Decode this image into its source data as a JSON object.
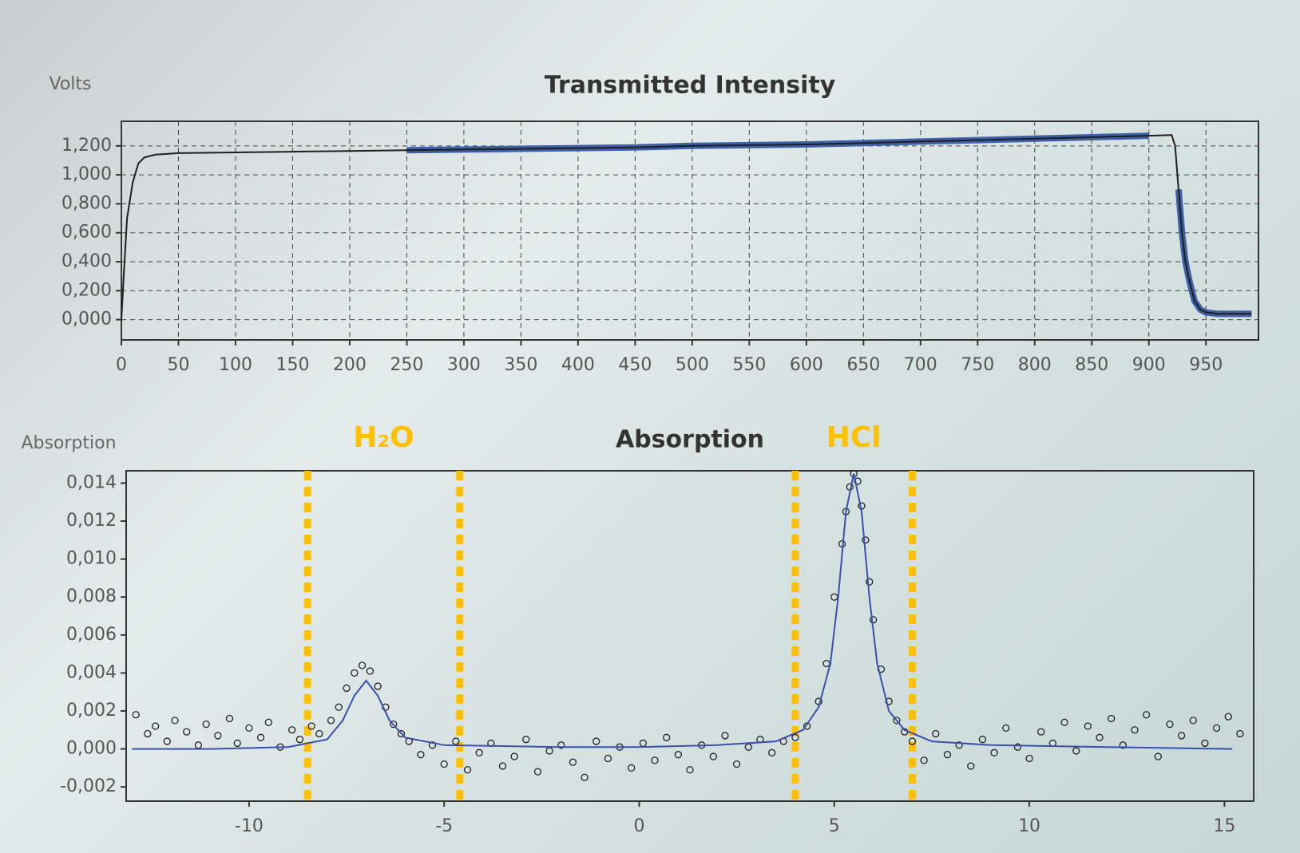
{
  "chart_data": [
    {
      "type": "line",
      "title": "Transmitted Intensity",
      "ylabel": "Volts",
      "grid": true,
      "xlim": [
        0,
        996
      ],
      "ylim": [
        -0.14,
        1.37
      ],
      "xticks": [
        0,
        50,
        100,
        150,
        200,
        250,
        300,
        350,
        400,
        450,
        500,
        550,
        600,
        650,
        700,
        750,
        800,
        850,
        900,
        950
      ],
      "yticks": [
        {
          "value": 0,
          "label": "0,000"
        },
        {
          "value": 0.2,
          "label": "0,200"
        },
        {
          "value": 0.4,
          "label": "0,400"
        },
        {
          "value": 0.6,
          "label": "0,600"
        },
        {
          "value": 0.8,
          "label": "0,800"
        },
        {
          "value": 1.0,
          "label": "1,000"
        },
        {
          "value": 1.2,
          "label": "1,200"
        }
      ],
      "x": [
        0,
        2,
        5,
        10,
        15,
        20,
        30,
        50,
        100,
        150,
        200,
        250,
        300,
        350,
        400,
        450,
        500,
        550,
        600,
        650,
        700,
        750,
        800,
        850,
        900,
        920,
        923,
        926,
        929,
        932,
        936,
        940,
        945,
        950,
        960,
        975,
        990
      ],
      "series": [
        {
          "color": "#3c5fa8",
          "width": 8,
          "values": [
            null,
            null,
            null,
            null,
            null,
            null,
            null,
            null,
            null,
            null,
            null,
            1.17,
            1.175,
            1.18,
            1.185,
            1.19,
            1.2,
            1.205,
            1.21,
            1.22,
            1.23,
            1.24,
            1.25,
            1.26,
            1.27,
            null,
            null,
            0.9,
            0.6,
            0.4,
            0.25,
            0.13,
            0.07,
            0.05,
            0.04,
            0.04,
            0.04
          ]
        },
        {
          "color": "#1e1e1e",
          "width": 2,
          "values": [
            0,
            0.3,
            0.7,
            0.95,
            1.08,
            1.12,
            1.14,
            1.15,
            1.155,
            1.16,
            1.165,
            1.17,
            1.175,
            1.18,
            1.185,
            1.19,
            1.2,
            1.205,
            1.21,
            1.22,
            1.23,
            1.24,
            1.25,
            1.26,
            1.27,
            1.275,
            1.2,
            0.9,
            0.6,
            0.4,
            0.25,
            0.13,
            0.07,
            0.05,
            0.04,
            0.04,
            0.04
          ]
        }
      ]
    },
    {
      "type": "scatter",
      "title": "Absorption",
      "ylabel": "Absorption",
      "grid": false,
      "xlim": [
        -13.15,
        15.75
      ],
      "ylim": [
        -0.00275,
        0.01465
      ],
      "xticks": [
        -10,
        -5,
        0,
        5,
        10,
        15
      ],
      "yticks": [
        {
          "value": -0.002,
          "label": "-0,002"
        },
        {
          "value": 0,
          "label": "0,000"
        },
        {
          "value": 0.002,
          "label": "0,002"
        },
        {
          "value": 0.004,
          "label": "0,004"
        },
        {
          "value": 0.006,
          "label": "0,006"
        },
        {
          "value": 0.008,
          "label": "0,008"
        },
        {
          "value": 0.01,
          "label": "0,010"
        },
        {
          "value": 0.012,
          "label": "0,012"
        },
        {
          "value": 0.014,
          "label": "0,014"
        }
      ],
      "regions": [
        {
          "label": "H₂O",
          "color": "#ffc000",
          "bounds": [
            -8.5,
            -4.6
          ]
        },
        {
          "label": "HCl",
          "color": "#ffc000",
          "bounds": [
            4.0,
            7.0
          ]
        }
      ],
      "series": [
        {
          "mode": "markers",
          "color": "#222222",
          "x": [
            -12.9,
            -12.6,
            -12.4,
            -12.1,
            -11.9,
            -11.6,
            -11.3,
            -11.1,
            -10.8,
            -10.5,
            -10.3,
            -10.0,
            -9.7,
            -9.5,
            -9.2,
            -8.9,
            -8.7,
            -8.4,
            -8.2,
            -7.9,
            -7.7,
            -7.5,
            -7.3,
            -7.1,
            -6.9,
            -6.7,
            -6.5,
            -6.3,
            -6.1,
            -5.9,
            -5.6,
            -5.3,
            -5.0,
            -4.7,
            -4.4,
            -4.1,
            -3.8,
            -3.5,
            -3.2,
            -2.9,
            -2.6,
            -2.3,
            -2.0,
            -1.7,
            -1.4,
            -1.1,
            -0.8,
            -0.5,
            -0.2,
            0.1,
            0.4,
            0.7,
            1.0,
            1.3,
            1.6,
            1.9,
            2.2,
            2.5,
            2.8,
            3.1,
            3.4,
            3.7,
            4.0,
            4.3,
            4.6,
            4.8,
            5.0,
            5.2,
            5.3,
            5.4,
            5.5,
            5.6,
            5.7,
            5.8,
            5.9,
            6.0,
            6.2,
            6.4,
            6.6,
            6.8,
            7.0,
            7.3,
            7.6,
            7.9,
            8.2,
            8.5,
            8.8,
            9.1,
            9.4,
            9.7,
            10.0,
            10.3,
            10.6,
            10.9,
            11.2,
            11.5,
            11.8,
            12.1,
            12.4,
            12.7,
            13.0,
            13.3,
            13.6,
            13.9,
            14.2,
            14.5,
            14.8,
            15.1,
            15.4
          ],
          "values": [
            0.0018,
            0.0008,
            0.0012,
            0.0004,
            0.0015,
            0.0009,
            0.0002,
            0.0013,
            0.0007,
            0.0016,
            0.0003,
            0.0011,
            0.0006,
            0.0014,
            0.0001,
            0.001,
            0.0005,
            0.0012,
            0.0008,
            0.0015,
            0.0022,
            0.0032,
            0.004,
            0.0044,
            0.0041,
            0.0033,
            0.0022,
            0.0013,
            0.0008,
            0.0004,
            -0.0003,
            0.0002,
            -0.0008,
            0.0004,
            -0.0011,
            -0.0002,
            0.0003,
            -0.0009,
            -0.0004,
            0.0005,
            -0.0012,
            -0.0001,
            0.0002,
            -0.0007,
            -0.0015,
            0.0004,
            -0.0005,
            0.0001,
            -0.001,
            0.0003,
            -0.0006,
            0.0006,
            -0.0003,
            -0.0011,
            0.0002,
            -0.0004,
            0.0007,
            -0.0008,
            0.0001,
            0.0005,
            -0.0002,
            0.0004,
            0.0006,
            0.0012,
            0.0025,
            0.0045,
            0.008,
            0.0108,
            0.0125,
            0.0138,
            0.0145,
            0.0141,
            0.0128,
            0.011,
            0.0088,
            0.0068,
            0.0042,
            0.0025,
            0.0015,
            0.0009,
            0.0004,
            -0.0006,
            0.0008,
            -0.0003,
            0.0002,
            -0.0009,
            0.0005,
            -0.0002,
            0.0011,
            0.0001,
            -0.0005,
            0.0009,
            0.0003,
            0.0014,
            -0.0001,
            0.0012,
            0.0006,
            0.0016,
            0.0002,
            0.001,
            0.0018,
            -0.0004,
            0.0013,
            0.0007,
            0.0015,
            0.0003,
            0.0011,
            0.0017,
            0.0008
          ]
        },
        {
          "mode": "line",
          "color": "#3a4fb0",
          "x": [
            -13,
            -11,
            -9,
            -8,
            -7.6,
            -7.3,
            -7,
            -6.7,
            -6.4,
            -6,
            -5,
            -2,
            0,
            2,
            3.5,
            4.2,
            4.6,
            4.9,
            5.1,
            5.3,
            5.5,
            5.7,
            5.9,
            6.1,
            6.4,
            6.8,
            7.5,
            9,
            12,
            15.2
          ],
          "values": [
            0,
            0,
            0.0001,
            0.0005,
            0.0015,
            0.0028,
            0.0036,
            0.0028,
            0.0015,
            0.0006,
            0.0002,
            0.0001,
            0.0001,
            0.0002,
            0.0004,
            0.001,
            0.0022,
            0.0045,
            0.008,
            0.0125,
            0.0145,
            0.0125,
            0.008,
            0.0045,
            0.002,
            0.001,
            0.0004,
            0.0002,
            0.0001,
            0
          ]
        }
      ]
    }
  ]
}
